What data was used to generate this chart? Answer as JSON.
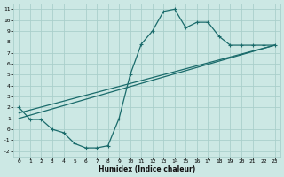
{
  "xlabel": "Humidex (Indice chaleur)",
  "bg_color": "#cce8e4",
  "grid_color": "#aacfcb",
  "line_color": "#1a6b6b",
  "xlim": [
    -0.5,
    23.5
  ],
  "ylim": [
    -2.5,
    11.5
  ],
  "xticks": [
    0,
    1,
    2,
    3,
    4,
    5,
    6,
    7,
    8,
    9,
    10,
    11,
    12,
    13,
    14,
    15,
    16,
    17,
    18,
    19,
    20,
    21,
    22,
    23
  ],
  "yticks": [
    -2,
    -1,
    0,
    1,
    2,
    3,
    4,
    5,
    6,
    7,
    8,
    9,
    10,
    11
  ],
  "curve1_x": [
    0,
    1,
    2,
    3,
    4,
    5,
    6,
    7,
    8,
    9,
    10,
    11,
    12,
    13,
    14,
    15,
    16,
    17,
    18,
    19,
    20,
    21,
    22,
    23
  ],
  "curve1_y": [
    2.0,
    0.9,
    0.9,
    0.0,
    -0.3,
    -1.3,
    -1.7,
    -1.7,
    -1.5,
    1.0,
    5.0,
    7.8,
    9.0,
    10.8,
    11.0,
    9.3,
    9.8,
    9.8,
    8.5,
    7.7,
    7.7,
    7.7,
    7.7,
    7.7
  ],
  "curve2_x": [
    0,
    23
  ],
  "curve2_y": [
    1.0,
    7.7
  ],
  "curve3_x": [
    0,
    23
  ],
  "curve3_y": [
    1.5,
    7.7
  ],
  "marker_x": [
    0,
    1,
    2,
    3,
    4,
    5,
    6,
    7,
    8,
    9,
    10,
    11,
    12,
    13,
    14,
    15,
    16,
    17,
    18,
    19,
    20,
    21,
    22,
    23
  ],
  "marker_y": [
    2.0,
    0.9,
    0.9,
    0.0,
    -0.3,
    -1.3,
    -1.7,
    -1.7,
    -1.5,
    1.0,
    5.0,
    7.8,
    9.0,
    10.8,
    11.0,
    9.3,
    9.8,
    9.8,
    8.5,
    7.7,
    7.7,
    7.7,
    7.7,
    7.7
  ]
}
